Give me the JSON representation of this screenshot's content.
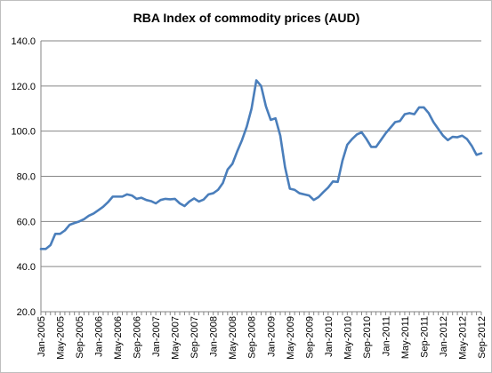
{
  "chart_data": {
    "type": "line",
    "title": "RBA Index of commodity prices (AUD)",
    "xlabel": "",
    "ylabel": "",
    "ylim": [
      20,
      140
    ],
    "yticks": [
      "20.0",
      "40.0",
      "60.0",
      "80.0",
      "100.0",
      "120.0",
      "140.0"
    ],
    "xtick_labels": [
      "Jan-2005",
      "May-2005",
      "Sep-2005",
      "Jan-2006",
      "May-2006",
      "Sep-2006",
      "Jan-2007",
      "May-2007",
      "Sep-2007",
      "Jan-2008",
      "May-2008",
      "Sep-2008",
      "Jan-2009",
      "May-2009",
      "Sep-2009",
      "Jan-2010",
      "May-2010",
      "Sep-2010",
      "Jan-2011",
      "May-2011",
      "Sep-2011",
      "Jan-2012",
      "May-2012",
      "Sep-2012"
    ],
    "grid": "horizontal",
    "legend": "none",
    "line_color": "#4a7ebb",
    "series": [
      {
        "x": [
          "Jan-2005",
          "Feb-2005",
          "Mar-2005",
          "Apr-2005",
          "May-2005",
          "Jun-2005",
          "Jul-2005",
          "Aug-2005",
          "Sep-2005",
          "Oct-2005",
          "Nov-2005",
          "Dec-2005",
          "Jan-2006",
          "Feb-2006",
          "Mar-2006",
          "Apr-2006",
          "May-2006",
          "Jun-2006",
          "Jul-2006",
          "Aug-2006",
          "Sep-2006",
          "Oct-2006",
          "Nov-2006",
          "Dec-2006",
          "Jan-2007",
          "Feb-2007",
          "Mar-2007",
          "Apr-2007",
          "May-2007",
          "Jun-2007",
          "Jul-2007",
          "Aug-2007",
          "Sep-2007",
          "Oct-2007",
          "Nov-2007",
          "Dec-2007",
          "Jan-2008",
          "Feb-2008",
          "Mar-2008",
          "Apr-2008",
          "May-2008",
          "Jun-2008",
          "Jul-2008",
          "Aug-2008",
          "Sep-2008",
          "Oct-2008",
          "Nov-2008",
          "Dec-2008",
          "Jan-2009",
          "Feb-2009",
          "Mar-2009",
          "Apr-2009",
          "May-2009",
          "Jun-2009",
          "Jul-2009",
          "Aug-2009",
          "Sep-2009",
          "Oct-2009",
          "Nov-2009",
          "Dec-2009",
          "Jan-2010",
          "Feb-2010",
          "Mar-2010",
          "Apr-2010",
          "May-2010",
          "Jun-2010",
          "Jul-2010",
          "Aug-2010",
          "Sep-2010",
          "Oct-2010",
          "Nov-2010",
          "Dec-2010",
          "Jan-2011",
          "Feb-2011",
          "Mar-2011",
          "Apr-2011",
          "May-2011",
          "Jun-2011",
          "Jul-2011",
          "Aug-2011",
          "Sep-2011",
          "Oct-2011",
          "Nov-2011",
          "Dec-2011",
          "Jan-2012",
          "Feb-2012",
          "Mar-2012",
          "Apr-2012",
          "May-2012",
          "Jun-2012",
          "Jul-2012",
          "Aug-2012",
          "Sep-2012"
        ],
        "values": [
          47.8,
          47.8,
          49.5,
          54.5,
          54.5,
          56.0,
          58.5,
          59.3,
          60.0,
          61.0,
          62.5,
          63.5,
          65.0,
          66.5,
          68.5,
          71.0,
          71.0,
          71.0,
          72.0,
          71.5,
          70.0,
          70.5,
          69.5,
          69.0,
          68.0,
          69.5,
          70.0,
          69.8,
          70.0,
          68.0,
          66.8,
          68.8,
          70.2,
          68.8,
          69.7,
          72.0,
          72.5,
          74.0,
          77.0,
          83.0,
          85.5,
          91.0,
          96.0,
          102.0,
          110.0,
          122.5,
          120.0,
          111.0,
          105.0,
          105.7,
          98.0,
          84.0,
          74.5,
          74.0,
          72.5,
          72.0,
          71.5,
          69.5,
          70.8,
          73.0,
          75.0,
          77.7,
          77.5,
          87.0,
          94.0,
          96.5,
          98.5,
          99.5,
          96.5,
          93.0,
          93.0,
          96.0,
          99.0,
          101.5,
          104.0,
          104.5,
          107.5,
          108.0,
          107.5,
          110.5,
          110.5,
          108.0,
          104.0,
          101.0,
          98.0,
          96.0,
          97.5,
          97.3,
          98.0,
          96.5,
          93.5,
          89.5,
          90.2
        ]
      }
    ]
  }
}
